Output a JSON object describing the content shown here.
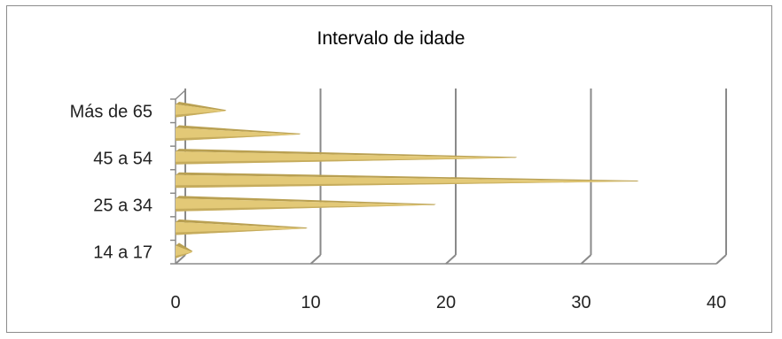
{
  "chart_data": {
    "type": "bar",
    "orientation": "horizontal",
    "style": "3d-cone",
    "title": "Intervalo de idade",
    "xlabel": "",
    "ylabel": "",
    "categories": [
      "14 a 17",
      "",
      "25 a 34",
      "",
      "45 a 54",
      "",
      "Más de 65"
    ],
    "values": [
      1,
      9.5,
      19,
      34,
      25,
      9,
      3.5
    ],
    "xlim": [
      0,
      40
    ],
    "xticks": [
      0,
      10,
      20,
      30,
      40
    ],
    "grid": true,
    "legend": "none",
    "bar_color": "#e3c977",
    "bar_shadow_color": "#b9a052",
    "axis_color": "#8a8a8a"
  }
}
